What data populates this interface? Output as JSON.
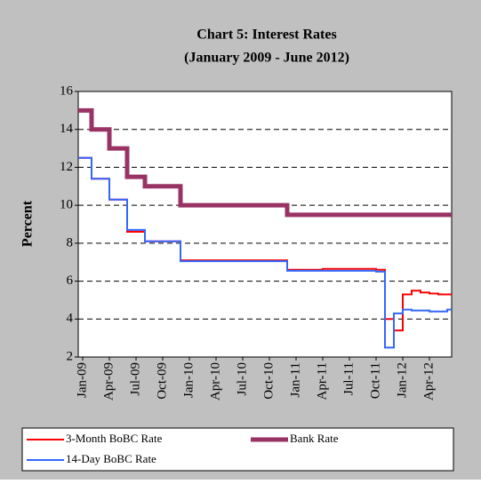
{
  "chart_data": {
    "type": "step-line",
    "title": "Chart 5: Interest Rates",
    "subtitle": "(January  2009 - June 2012)",
    "y_label": "Percent",
    "categories": [
      "Jan-09",
      null,
      null,
      "Apr-09",
      null,
      null,
      "Jul-09",
      null,
      null,
      "Oct-09",
      null,
      null,
      "Jan-10",
      null,
      null,
      "Apr-10",
      null,
      null,
      "Jul-10",
      null,
      null,
      "Oct-10",
      null,
      null,
      "Jan-11",
      null,
      null,
      "Apr-11",
      null,
      null,
      "Jul-11",
      null,
      null,
      "Oct-11",
      null,
      null,
      "Jan-12",
      null,
      null,
      "Apr-12",
      null,
      null
    ],
    "series": [
      {
        "name": "3-Month BoBC Rate",
        "color": "#ff0000",
        "values": [
          12.5,
          11.4,
          11.4,
          10.3,
          10.3,
          8.6,
          8.6,
          8.1,
          8.1,
          8.1,
          8.1,
          7.1,
          7.1,
          7.1,
          7.1,
          7.1,
          7.1,
          7.1,
          7.1,
          7.1,
          7.1,
          7.1,
          7.1,
          6.6,
          6.6,
          6.6,
          6.6,
          6.65,
          6.65,
          6.65,
          6.65,
          6.65,
          6.65,
          6.6,
          4.0,
          3.4,
          5.3,
          5.5,
          5.4,
          5.35,
          5.3,
          5.3
        ]
      },
      {
        "name": "Bank Rate",
        "color": "#993366",
        "values": [
          15,
          14,
          14,
          13,
          13,
          11.5,
          11.5,
          11,
          11,
          11,
          11,
          10,
          10,
          10,
          10,
          10,
          10,
          10,
          10,
          10,
          10,
          10,
          10,
          9.5,
          9.5,
          9.5,
          9.5,
          9.5,
          9.5,
          9.5,
          9.5,
          9.5,
          9.5,
          9.5,
          9.5,
          9.5,
          9.5,
          9.5,
          9.5,
          9.5,
          9.5,
          9.5
        ]
      },
      {
        "name": "14-Day BoBC Rate",
        "color": "#3366ff",
        "values": [
          12.5,
          11.4,
          11.4,
          10.3,
          10.3,
          8.7,
          8.7,
          8.1,
          8.1,
          8.1,
          8.1,
          7.05,
          7.05,
          7.05,
          7.05,
          7.05,
          7.05,
          7.05,
          7.05,
          7.05,
          7.05,
          7.05,
          7.05,
          6.55,
          6.55,
          6.55,
          6.55,
          6.55,
          6.55,
          6.55,
          6.55,
          6.55,
          6.55,
          6.5,
          2.5,
          4.3,
          4.5,
          4.45,
          4.45,
          4.4,
          4.4,
          4.5
        ]
      }
    ],
    "ylim": [
      2,
      16
    ],
    "yticks": [
      2,
      4,
      6,
      8,
      10,
      12,
      14,
      16
    ],
    "grid": true
  }
}
